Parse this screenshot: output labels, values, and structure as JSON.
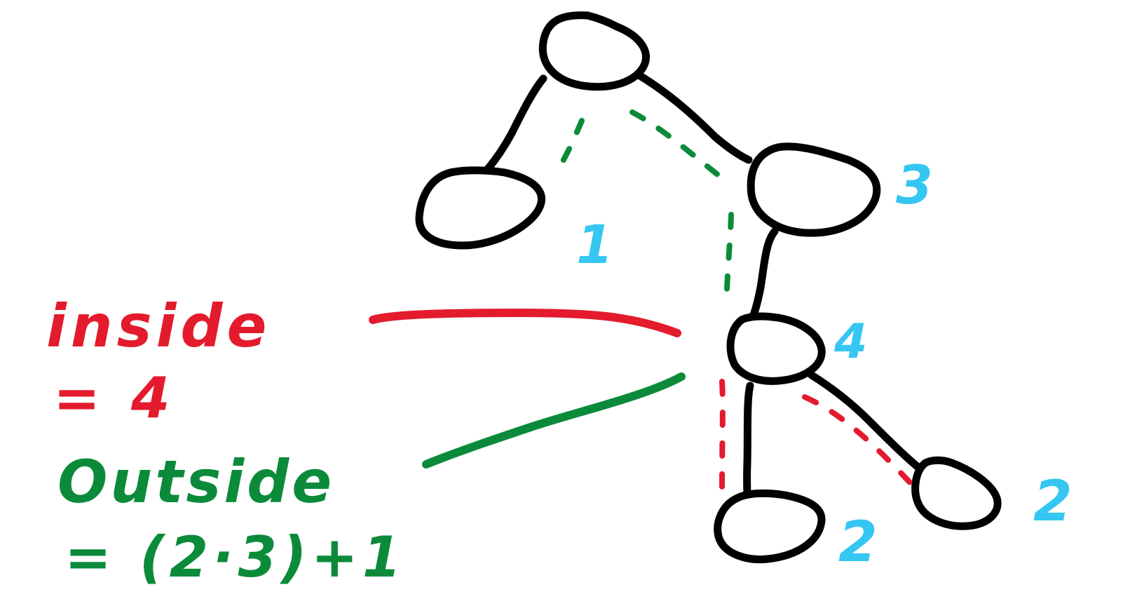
{
  "colors": {
    "ink": "#000000",
    "inside": "#e31b2d",
    "outside": "#0b8b3a",
    "count": "#35c6f2"
  },
  "annotation": {
    "inside_label": "inside",
    "inside_value": "= 4",
    "outside_label": "Outside",
    "outside_value": "= (2·3)+1"
  },
  "tree": {
    "nodes": [
      {
        "id": "top",
        "count": ""
      },
      {
        "id": "left-leaf",
        "count": "1"
      },
      {
        "id": "right",
        "count": "3"
      },
      {
        "id": "mid",
        "count": "4"
      },
      {
        "id": "bottom-left",
        "count": "2"
      },
      {
        "id": "bottom-right",
        "count": "2"
      }
    ]
  }
}
